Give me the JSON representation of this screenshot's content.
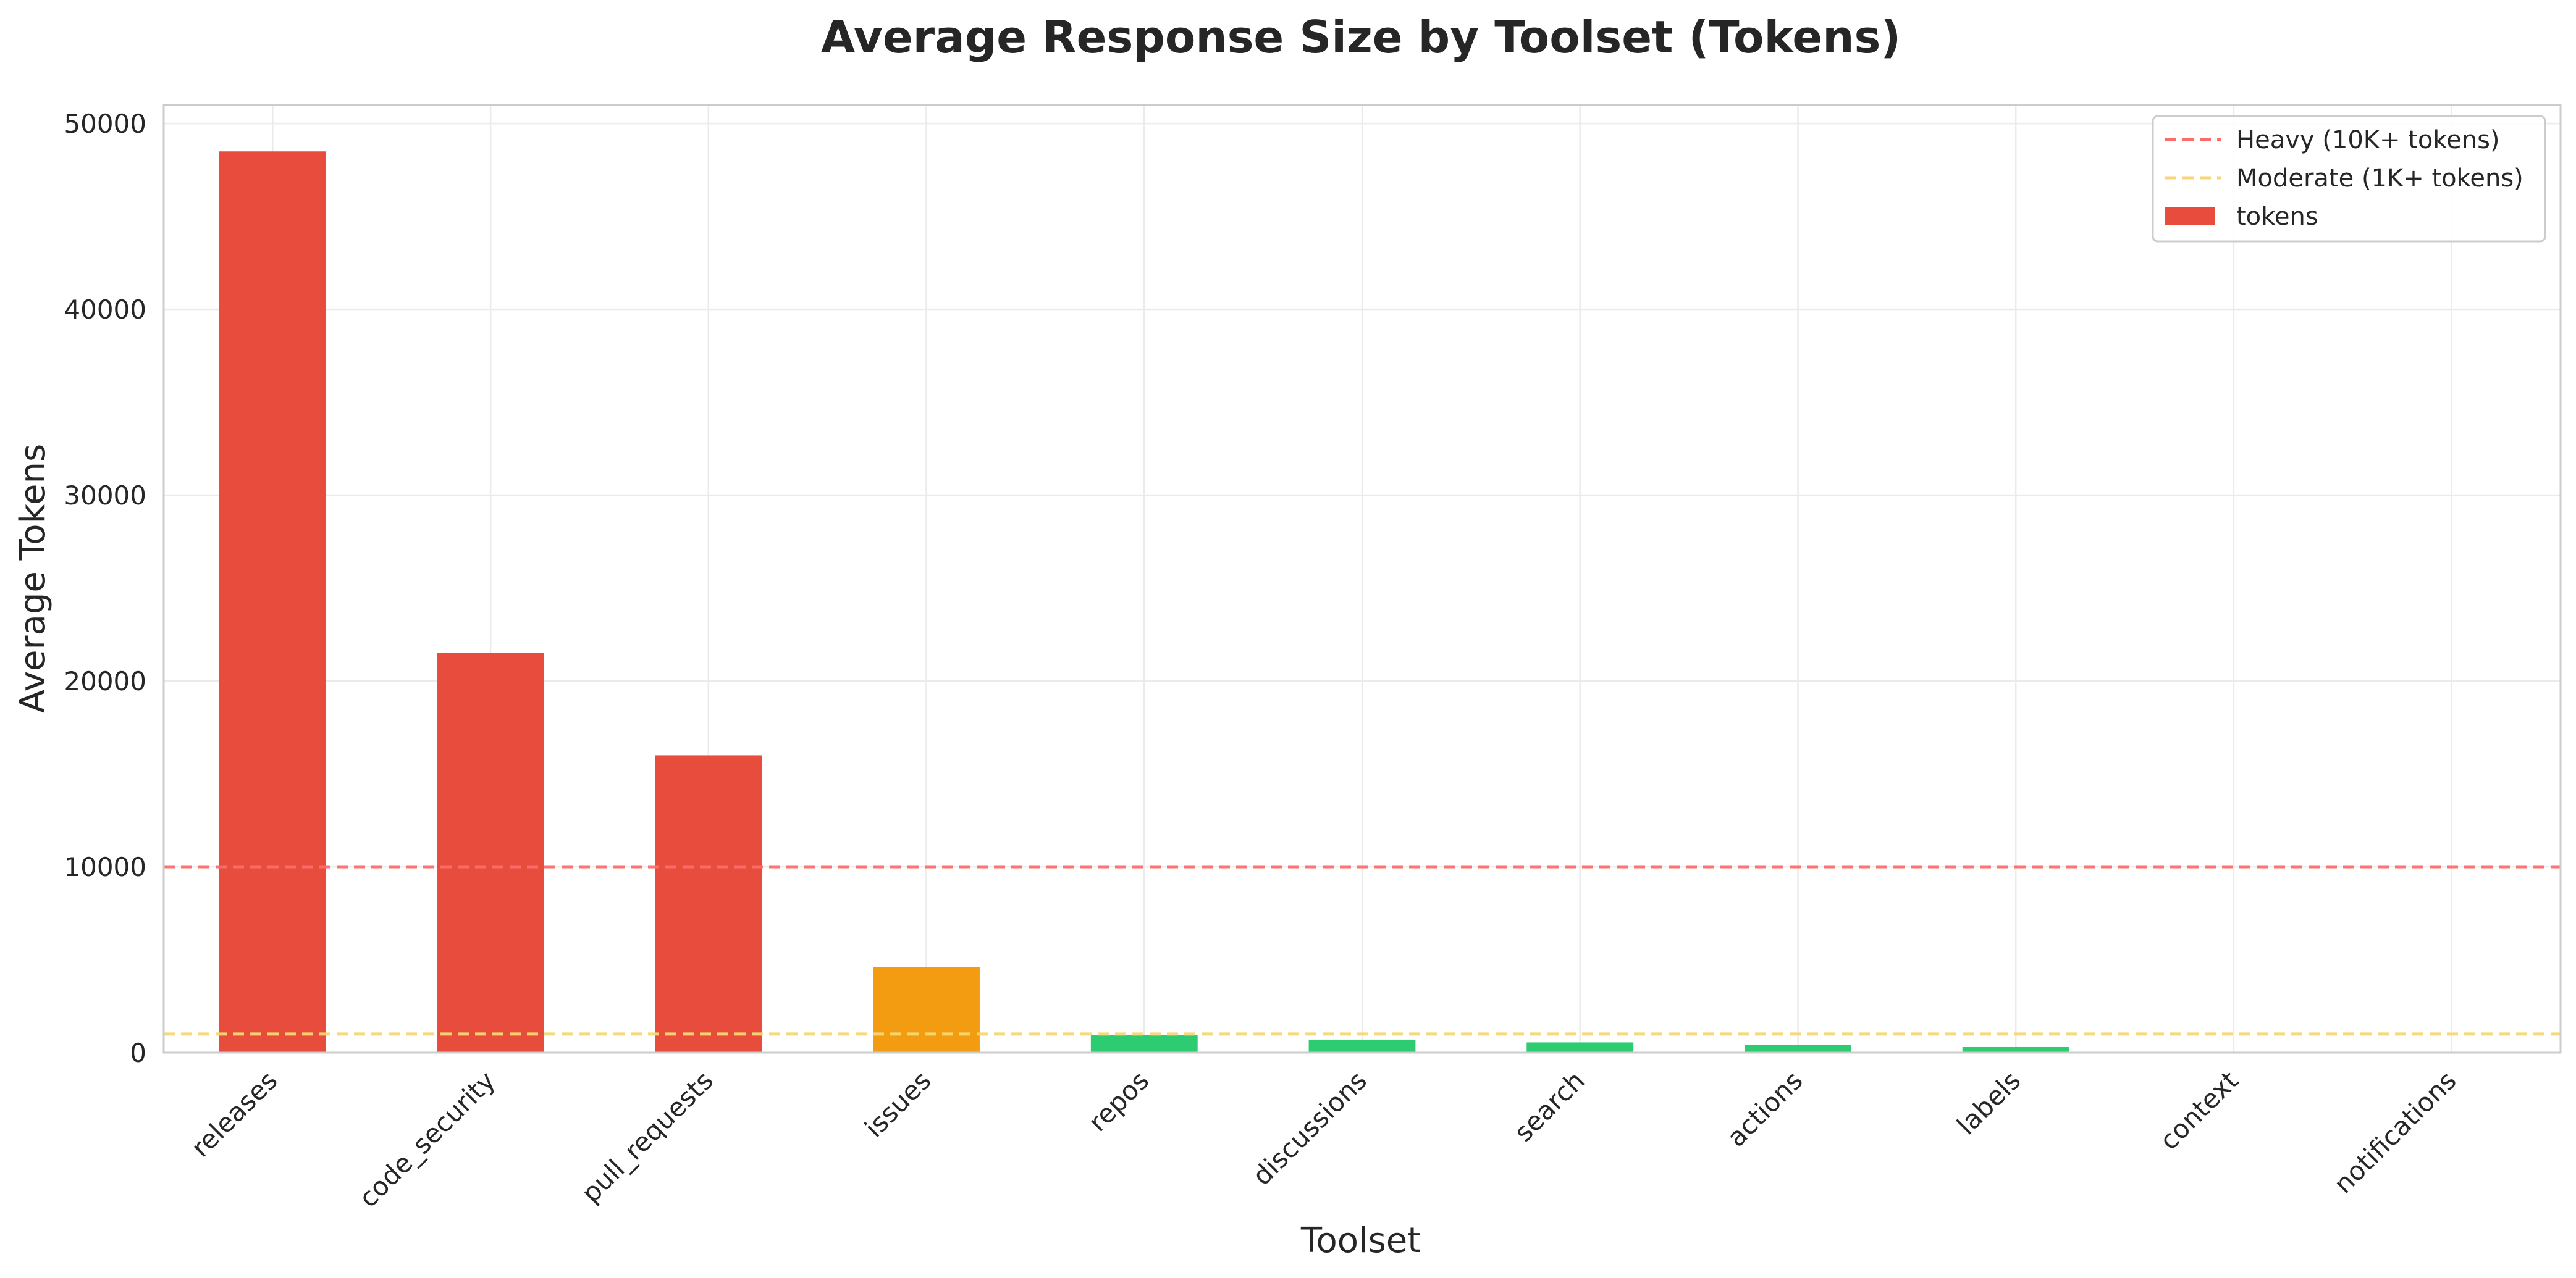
{
  "chart_data": {
    "type": "bar",
    "title": "Average Response Size by Toolset (Tokens)",
    "xlabel": "Toolset",
    "ylabel": "Average Tokens",
    "categories": [
      "releases",
      "code_security",
      "pull_requests",
      "issues",
      "repos",
      "discussions",
      "search",
      "actions",
      "labels",
      "context",
      "notifications"
    ],
    "series": [
      {
        "name": "tokens",
        "values": [
          48500,
          21500,
          16000,
          4600,
          950,
          700,
          550,
          400,
          300,
          20,
          10
        ],
        "colors": [
          "#e74c3c",
          "#e74c3c",
          "#e74c3c",
          "#f39c12",
          "#2ecc71",
          "#2ecc71",
          "#2ecc71",
          "#2ecc71",
          "#2ecc71",
          "#2ecc71",
          "#2ecc71"
        ]
      }
    ],
    "reference_lines": [
      {
        "name": "Heavy (10K+ tokens)",
        "value": 10000,
        "color": "#ff6b6b",
        "style": "dashed"
      },
      {
        "name": "Moderate (1K+ tokens)",
        "value": 1000,
        "color": "#f7d774",
        "style": "dashed"
      }
    ],
    "ylim": [
      0,
      51000
    ],
    "yticks": [
      0,
      10000,
      20000,
      30000,
      40000,
      50000
    ],
    "grid": true,
    "legend_position": "top-right"
  }
}
